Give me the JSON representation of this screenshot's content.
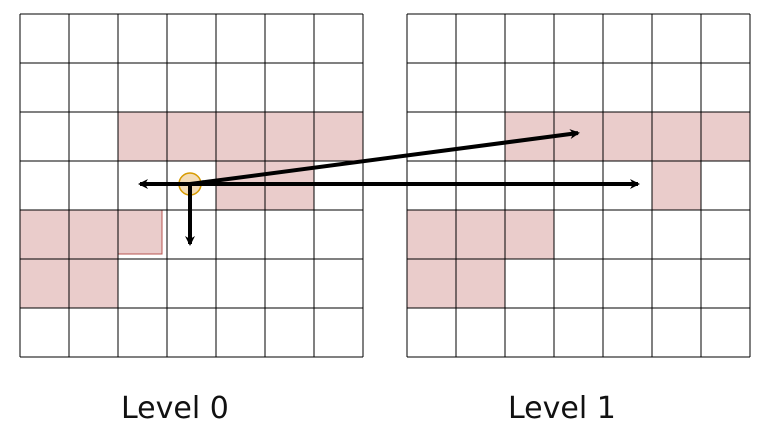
{
  "levels": [
    {
      "label": "Level 0",
      "filled_cells": [
        [
          2,
          2
        ],
        [
          2,
          3
        ],
        [
          2,
          4
        ],
        [
          2,
          5
        ],
        [
          2,
          6
        ],
        [
          3,
          4
        ],
        [
          3,
          5
        ],
        [
          4,
          0
        ],
        [
          4,
          1
        ],
        [
          5,
          0
        ],
        [
          5,
          1
        ]
      ],
      "partial_cells": [
        [
          4,
          2
        ]
      ],
      "empty_cells": [
        [
          3,
          3
        ]
      ]
    },
    {
      "label": "Level 1",
      "filled_cells": [
        [
          2,
          2
        ],
        [
          2,
          3
        ],
        [
          2,
          4
        ],
        [
          2,
          5
        ],
        [
          2,
          6
        ],
        [
          3,
          5
        ],
        [
          4,
          0
        ],
        [
          4,
          1
        ],
        [
          4,
          2
        ],
        [
          5,
          0
        ],
        [
          5,
          1
        ]
      ]
    }
  ],
  "grid": {
    "rows": 7,
    "cols": 7
  },
  "colors": {
    "fill": "#eacccb",
    "fill_stroke": "#b85450",
    "grid_line": "#000000",
    "marker_fill": "#f3dcb8",
    "marker_stroke": "#d79b00",
    "arrow": "#000000"
  },
  "arrows": [
    {
      "name": "arrow-left",
      "from": "marker",
      "to": "level0-left"
    },
    {
      "name": "arrow-down",
      "from": "marker",
      "to": "level0-down"
    },
    {
      "name": "arrow-up-right",
      "from": "marker",
      "to": "level1-upper"
    },
    {
      "name": "arrow-right",
      "from": "marker",
      "to": "level1-right"
    }
  ]
}
